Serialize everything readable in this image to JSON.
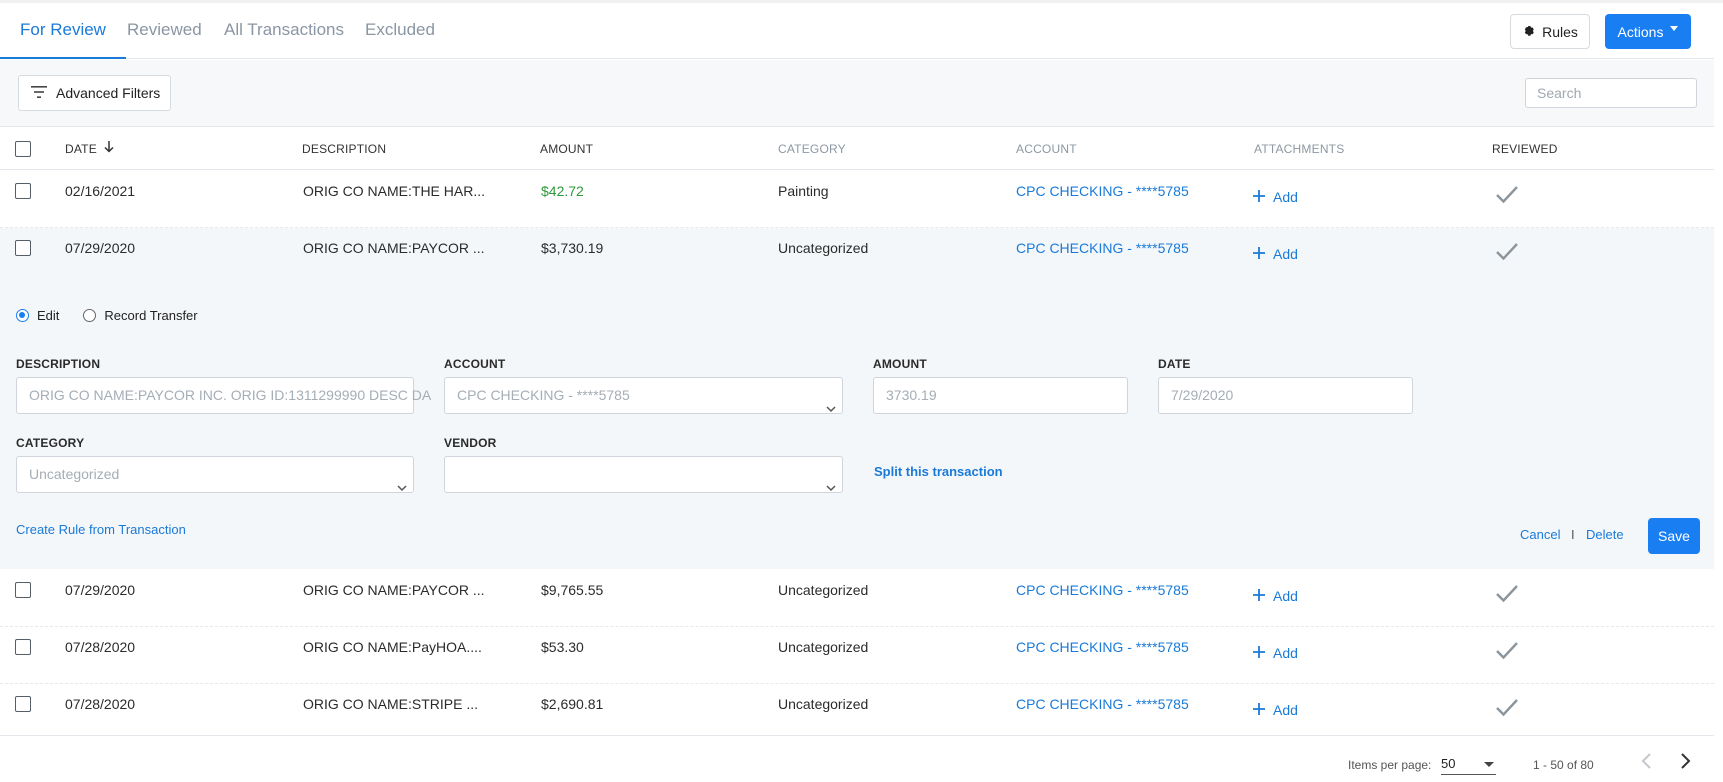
{
  "tabs": [
    {
      "label": "For Review"
    },
    {
      "label": "Reviewed"
    },
    {
      "label": "All Transactions"
    },
    {
      "label": "Excluded"
    }
  ],
  "toolbar": {
    "rules_label": "Rules",
    "actions_label": "Actions"
  },
  "filters": {
    "advanced_label": "Advanced Filters",
    "search_placeholder": "Search"
  },
  "table": {
    "columns": {
      "date": "DATE",
      "description": "DESCRIPTION",
      "amount": "AMOUNT",
      "category": "CATEGORY",
      "account": "ACCOUNT",
      "attachments": "ATTACHMENTS",
      "reviewed": "REVIEWED"
    },
    "add_label": "Add",
    "rows": [
      {
        "date": "02/16/2021",
        "description": "ORIG CO NAME:THE HAR...",
        "amount": "$42.72",
        "category": "Painting",
        "account": "CPC CHECKING - ****5785"
      },
      {
        "date": "07/29/2020",
        "description": "ORIG CO NAME:PAYCOR ...",
        "amount": "$3,730.19",
        "category": "Uncategorized",
        "account": "CPC CHECKING - ****5785"
      },
      {
        "date": "07/29/2020",
        "description": "ORIG CO NAME:PAYCOR ...",
        "amount": "$9,765.55",
        "category": "Uncategorized",
        "account": "CPC CHECKING - ****5785"
      },
      {
        "date": "07/28/2020",
        "description": "ORIG CO NAME:PayHOA....",
        "amount": "$53.30",
        "category": "Uncategorized",
        "account": "CPC CHECKING - ****5785"
      },
      {
        "date": "07/28/2020",
        "description": "ORIG CO NAME:STRIPE ...",
        "amount": "$2,690.81",
        "category": "Uncategorized",
        "account": "CPC CHECKING - ****5785"
      }
    ]
  },
  "edit": {
    "mode_edit": "Edit",
    "mode_transfer": "Record Transfer",
    "description_label": "DESCRIPTION",
    "description_value": "ORIG CO NAME:PAYCOR INC. ORIG ID:1311299990 DESC DA",
    "account_label": "ACCOUNT",
    "account_value": "CPC CHECKING - ****5785",
    "amount_label": "AMOUNT",
    "amount_value": "3730.19",
    "date_label": "DATE",
    "date_value": "7/29/2020",
    "category_label": "CATEGORY",
    "category_value": "Uncategorized",
    "vendor_label": "VENDOR",
    "vendor_value": "",
    "split_label": "Split this transaction",
    "rule_label": "Create Rule from Transaction",
    "cancel_label": "Cancel",
    "separator": "I",
    "delete_label": "Delete",
    "save_label": "Save"
  },
  "pagination": {
    "items_per_page_label": "Items per page:",
    "items_per_page_value": "50",
    "range_label": "1 - 50 of 80"
  },
  "colors": {
    "primary": "#1a7ef3",
    "link": "#1a7ad8",
    "positive": "#2e9a3a",
    "muted": "#8d98a3"
  }
}
